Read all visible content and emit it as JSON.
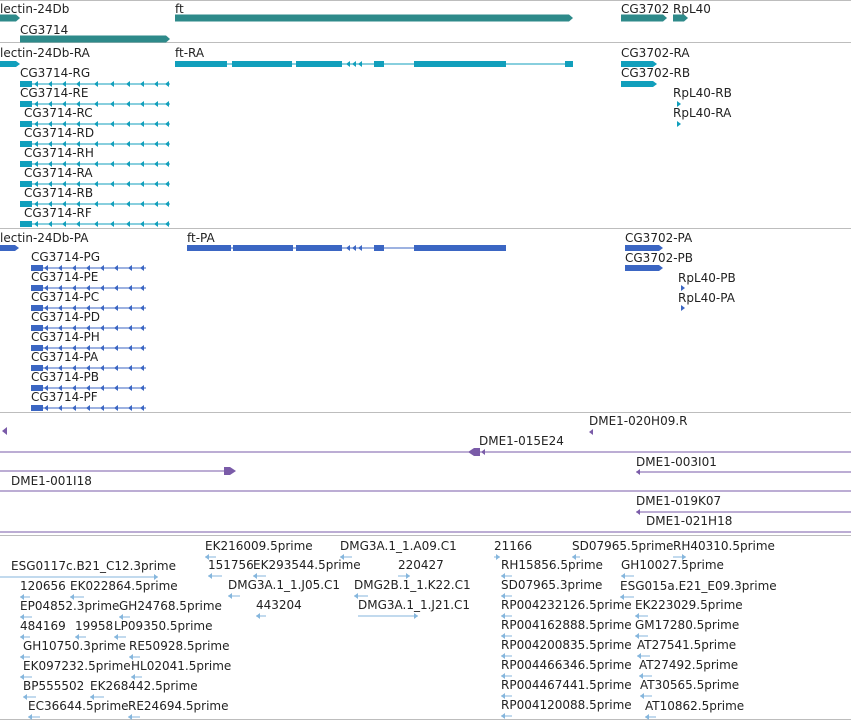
{
  "colors": {
    "gene": "#2e8a8a",
    "mrna": "#119fbc",
    "cds": "#3b66c3",
    "clone": "#7a5ba8",
    "est": "#85b6dd",
    "separator": "#bdbdbd"
  },
  "tracks": {
    "genes": [
      {
        "label": "lectin-24Db",
        "icon": "gene-bar"
      },
      {
        "label": "ft",
        "icon": "gene-bar"
      },
      {
        "label": "CG3702",
        "icon": "gene-bar"
      },
      {
        "label": "RpL40",
        "icon": "gene-bar"
      },
      {
        "label": "CG3714",
        "icon": "gene-bar"
      }
    ],
    "transcripts": [
      {
        "label": "lectin-24Db-RA"
      },
      {
        "label": "ft-RA"
      },
      {
        "label": "CG3702-RA"
      },
      {
        "label": "CG3702-RB"
      },
      {
        "label": "RpL40-RB"
      },
      {
        "label": "RpL40-RA"
      },
      {
        "label": "CG3714-RG"
      },
      {
        "label": "CG3714-RE"
      },
      {
        "label": "CG3714-RC"
      },
      {
        "label": "CG3714-RD"
      },
      {
        "label": "CG3714-RH"
      },
      {
        "label": "CG3714-RA"
      },
      {
        "label": "CG3714-RB"
      },
      {
        "label": "CG3714-RF"
      }
    ],
    "proteins": [
      {
        "label": "lectin-24Db-PA"
      },
      {
        "label": "ft-PA"
      },
      {
        "label": "CG3702-PA"
      },
      {
        "label": "CG3702-PB"
      },
      {
        "label": "RpL40-PB"
      },
      {
        "label": "RpL40-PA"
      },
      {
        "label": "CG3714-PG"
      },
      {
        "label": "CG3714-PE"
      },
      {
        "label": "CG3714-PC"
      },
      {
        "label": "CG3714-PD"
      },
      {
        "label": "CG3714-PH"
      },
      {
        "label": "CG3714-PA"
      },
      {
        "label": "CG3714-PB"
      },
      {
        "label": "CG3714-PF"
      }
    ],
    "clones": [
      {
        "label": "DME1-020H09.R"
      },
      {
        "label": "DME1-015E24"
      },
      {
        "label": "DME1-003I01"
      },
      {
        "label": "DME1-001I18"
      },
      {
        "label": "DME1-019K07"
      },
      {
        "label": "DME1-021H18"
      }
    ],
    "ests": [
      {
        "label": "EK216009.5prime"
      },
      {
        "label": "DMG3A.1_1.A09.C1"
      },
      {
        "label": "21166"
      },
      {
        "label": "SD07965.5prime"
      },
      {
        "label": "RH40310.5prime"
      },
      {
        "label": "ESG0117c.B21_C12.3prime"
      },
      {
        "label": "151756"
      },
      {
        "label": "EK293544.5prime"
      },
      {
        "label": "220427"
      },
      {
        "label": "RH15856.5prime"
      },
      {
        "label": "GH10027.5prime"
      },
      {
        "label": "120656"
      },
      {
        "label": "EK022864.5prime"
      },
      {
        "label": "DMG3A.1_1.J05.C1"
      },
      {
        "label": "DMG2B.1_1.K22.C1"
      },
      {
        "label": "SD07965.3prime"
      },
      {
        "label": "ESG015a.E21_E09.3prime"
      },
      {
        "label": "EP04852.3prime"
      },
      {
        "label": "GH24768.5prime"
      },
      {
        "label": "443204"
      },
      {
        "label": "DMG3A.1_1.J21.C1"
      },
      {
        "label": "RP004232126.5prime"
      },
      {
        "label": "EK223029.5prime"
      },
      {
        "label": "484169"
      },
      {
        "label": "19958"
      },
      {
        "label": "LP09350.5prime"
      },
      {
        "label": "RP004162888.5prime"
      },
      {
        "label": "GM17280.5prime"
      },
      {
        "label": "GH10750.3prime"
      },
      {
        "label": "RE50928.5prime"
      },
      {
        "label": "RP004200835.5prime"
      },
      {
        "label": "AT27541.5prime"
      },
      {
        "label": "EK097232.5prime"
      },
      {
        "label": "HL02041.5prime"
      },
      {
        "label": "RP004466346.5prime"
      },
      {
        "label": "AT27492.5prime"
      },
      {
        "label": "BP555502"
      },
      {
        "label": "EK268442.5prime"
      },
      {
        "label": "RP004467441.5prime"
      },
      {
        "label": "AT30565.5prime"
      },
      {
        "label": "EC36644.5prime"
      },
      {
        "label": "RE24694.5prime"
      },
      {
        "label": "RP004120088.5prime"
      },
      {
        "label": "AT10862.5prime"
      }
    ]
  }
}
